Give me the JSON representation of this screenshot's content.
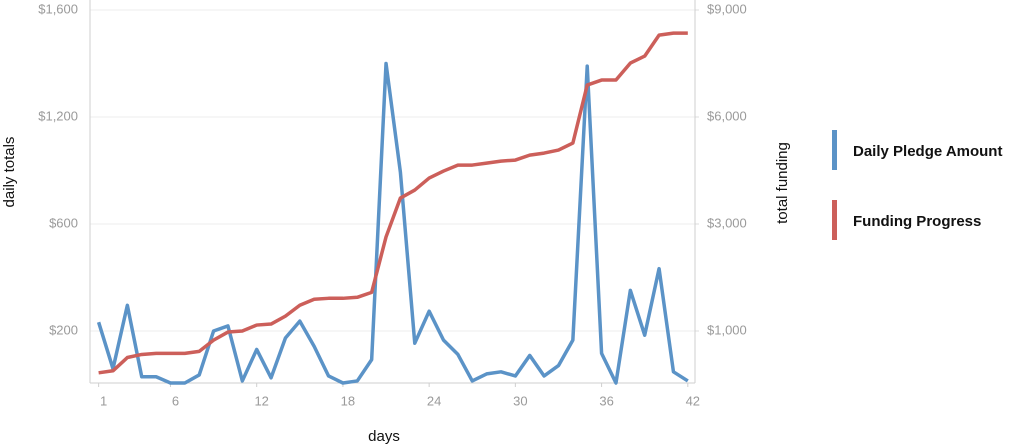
{
  "chart_data": {
    "type": "line",
    "xlabel": "days",
    "ylabel": "daily totals",
    "y2label": "total funding",
    "x": [
      1,
      2,
      3,
      4,
      5,
      6,
      7,
      8,
      9,
      10,
      11,
      12,
      13,
      14,
      15,
      16,
      17,
      18,
      19,
      20,
      21,
      22,
      23,
      24,
      25,
      26,
      27,
      28,
      29,
      30,
      31,
      32,
      33,
      34,
      35,
      36,
      37,
      38,
      39,
      40,
      41,
      42
    ],
    "xlim": [
      0.4,
      42.5
    ],
    "xticks": [
      1,
      6,
      12,
      18,
      24,
      30,
      36,
      42
    ],
    "ylim": [
      0,
      1600
    ],
    "yticks": [
      {
        "value": 200,
        "label": "$200"
      },
      {
        "value": 600,
        "label": "$600"
      },
      {
        "value": 1200,
        "label": "$1,200"
      },
      {
        "value": 1600,
        "label": "$1,600"
      }
    ],
    "y2lim": [
      0,
      9000
    ],
    "y2ticks": [
      {
        "value": 1000,
        "label": "$1,000"
      },
      {
        "value": 3000,
        "label": "$3,000"
      },
      {
        "value": 6000,
        "label": "$6,000"
      },
      {
        "value": 9000,
        "label": "$9,000"
      }
    ],
    "grid": true,
    "legend": "right",
    "series": [
      {
        "name": "Daily Pledge Amount",
        "color": "#5b93c7",
        "values": [
          233,
          55,
          296,
          24,
          24,
          0,
          0,
          31,
          200,
          219,
          8,
          129,
          20,
          173,
          237,
          141,
          27,
          0,
          8,
          90,
          1400,
          890,
          153,
          274,
          165,
          110,
          8,
          35,
          43,
          27,
          106,
          27,
          67,
          165,
          1390,
          114,
          0,
          352,
          184,
          433,
          43,
          8
        ]
      },
      {
        "name": "Funding Progress",
        "color": "#cc5f5a",
        "axis": "y2",
        "values": [
          196,
          235,
          490,
          549,
          569,
          569,
          569,
          608,
          824,
          980,
          1000,
          1111,
          1130,
          1278,
          1481,
          1593,
          1611,
          1611,
          1630,
          1722,
          2758,
          3728,
          3952,
          4288,
          4484,
          4652,
          4652,
          4708,
          4764,
          4792,
          4932,
          4988,
          5072,
          5268,
          6896,
          7036,
          7036,
          7512,
          7708,
          8296,
          8352,
          8352
        ]
      }
    ]
  }
}
